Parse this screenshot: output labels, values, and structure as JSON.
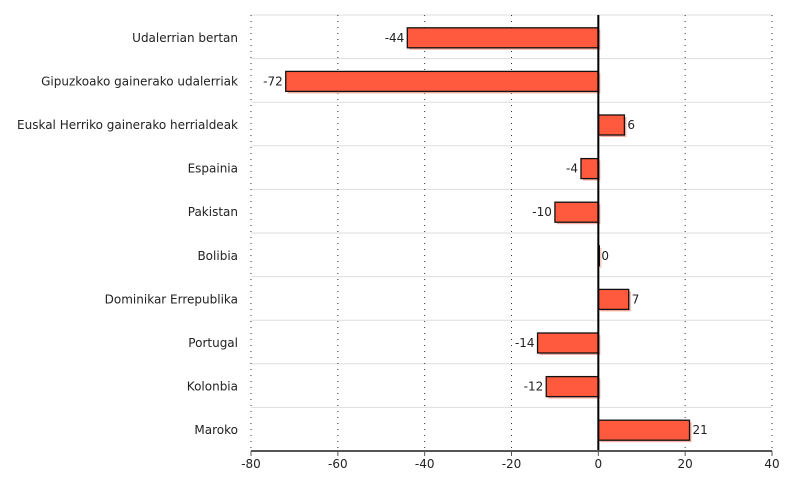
{
  "chart_data": {
    "type": "bar",
    "orientation": "horizontal",
    "categories": [
      "Udalerrian bertan",
      "Gipuzkoako gainerako udalerriak",
      "Euskal Herriko gainerako herrialdeak",
      "Espainia",
      "Pakistan",
      "Bolibia",
      "Dominikar Errepublika",
      "Portugal",
      "Kolonbia",
      "Maroko"
    ],
    "values": [
      -44,
      -72,
      6,
      -4,
      -10,
      0,
      7,
      -14,
      -12,
      21
    ],
    "data_labels": [
      "-44",
      "-72",
      "6",
      "-4",
      "-10",
      "0",
      "7",
      "-14",
      "-12",
      "21"
    ],
    "xlim": [
      -80,
      40
    ],
    "xticks": [
      "-80",
      "-60",
      "-40",
      "-20",
      "0",
      "20",
      "40"
    ],
    "title": "",
    "xlabel": "",
    "ylabel": "",
    "grid": "vertical dotted",
    "legend": "none",
    "bar_color": "#FF5A3D"
  }
}
